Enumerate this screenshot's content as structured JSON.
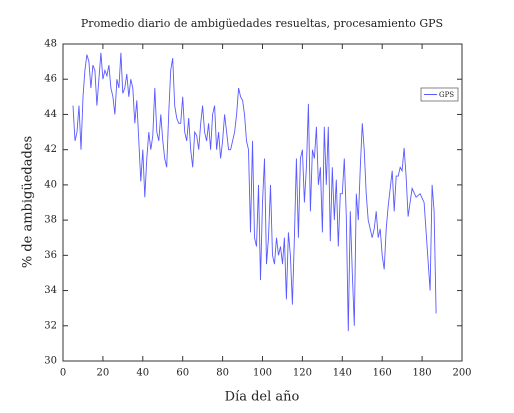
{
  "chart_data": {
    "type": "line",
    "title": "Promedio diario de ambigüedades resueltas, procesamiento GPS",
    "x_label": "Día del año",
    "y_label": "% de ambigüedades",
    "x": [
      5,
      6,
      7,
      8,
      9,
      10,
      11,
      12,
      13,
      14,
      15,
      16,
      17,
      18,
      19,
      20,
      21,
      22,
      23,
      24,
      25,
      26,
      27,
      28,
      29,
      30,
      31,
      32,
      33,
      34,
      35,
      36,
      37,
      38,
      39,
      40,
      41,
      42,
      43,
      44,
      45,
      46,
      47,
      48,
      49,
      50,
      51,
      52,
      53,
      54,
      55,
      56,
      57,
      58,
      59,
      60,
      61,
      62,
      63,
      64,
      65,
      66,
      67,
      68,
      69,
      70,
      71,
      72,
      73,
      74,
      75,
      76,
      77,
      78,
      79,
      80,
      81,
      82,
      83,
      84,
      85,
      86,
      87,
      88,
      89,
      90,
      91,
      92,
      93,
      94,
      95,
      96,
      97,
      98,
      99,
      100,
      101,
      102,
      103,
      104,
      105,
      106,
      107,
      108,
      109,
      110,
      111,
      112,
      113,
      114,
      115,
      116,
      117,
      118,
      119,
      120,
      121,
      122,
      123,
      124,
      125,
      126,
      127,
      128,
      129,
      130,
      131,
      132,
      133,
      134,
      135,
      136,
      137,
      138,
      139,
      140,
      141,
      142,
      143,
      144,
      145,
      146,
      147,
      148,
      149,
      150,
      151,
      152,
      153,
      154,
      155,
      156,
      157,
      158,
      159,
      160,
      161,
      162,
      163,
      165,
      166,
      167,
      168,
      169,
      170,
      171,
      172,
      173,
      175,
      177,
      179,
      181,
      184,
      185,
      186,
      187
    ],
    "series": [
      {
        "name": "GPS",
        "color": "#5a5aff",
        "values": [
          44.5,
          42.5,
          43,
          44.5,
          42,
          45,
          46.5,
          47.4,
          47,
          45.5,
          46.8,
          46.5,
          44.5,
          46,
          47.5,
          46,
          46.5,
          46.2,
          46.8,
          45.5,
          45,
          44,
          46,
          45.5,
          47.5,
          45.2,
          45.5,
          46.3,
          45,
          46,
          45.5,
          43.5,
          44.8,
          42.5,
          40.2,
          42,
          39.3,
          41.5,
          43,
          42,
          42.8,
          45.5,
          43,
          42.5,
          44,
          42.5,
          41.5,
          41,
          44,
          46.5,
          47.2,
          44.5,
          43.8,
          43.5,
          43.5,
          45,
          43,
          42.5,
          43.8,
          42,
          41,
          43,
          42.8,
          42,
          43.5,
          44.5,
          43,
          42.5,
          43.5,
          42,
          44,
          44.5,
          42,
          43,
          41.5,
          42.5,
          44,
          43,
          42,
          42,
          42.5,
          43,
          44,
          45.5,
          45,
          44.8,
          44,
          42.5,
          42,
          37.3,
          42.5,
          37,
          36.5,
          40,
          34.6,
          39,
          41.5,
          35.5,
          37,
          40,
          36,
          35.5,
          37,
          36,
          36.5,
          35.5,
          37,
          33.5,
          37.3,
          36,
          33.2,
          37,
          41.5,
          37,
          41.5,
          42,
          39,
          41,
          44.6,
          38.5,
          42,
          41.5,
          43.3,
          40,
          41,
          37.3,
          43.3,
          40,
          43.3,
          36.8,
          41,
          38,
          40.3,
          36.5,
          39.5,
          39.5,
          41.5,
          38.2,
          31.7,
          38.5,
          35,
          32,
          39.5,
          38,
          41,
          43.5,
          42,
          39.5,
          38,
          37.5,
          37,
          37.5,
          38.5,
          37,
          37.5,
          36,
          35.2,
          37.5,
          38.8,
          40.8,
          38.5,
          40.5,
          40.5,
          41,
          40.8,
          42.1,
          40.5,
          38.2,
          39.8,
          39.3,
          39.5,
          39,
          34,
          40,
          38.5,
          32.7
        ]
      }
    ],
    "xlim": [
      0,
      200
    ],
    "xticks": [
      0,
      20,
      40,
      60,
      80,
      100,
      120,
      140,
      160,
      180,
      200
    ],
    "ylim": [
      30,
      48
    ],
    "yticks": [
      30,
      32,
      34,
      36,
      38,
      40,
      42,
      44,
      46,
      48
    ],
    "legend": "upper right"
  }
}
